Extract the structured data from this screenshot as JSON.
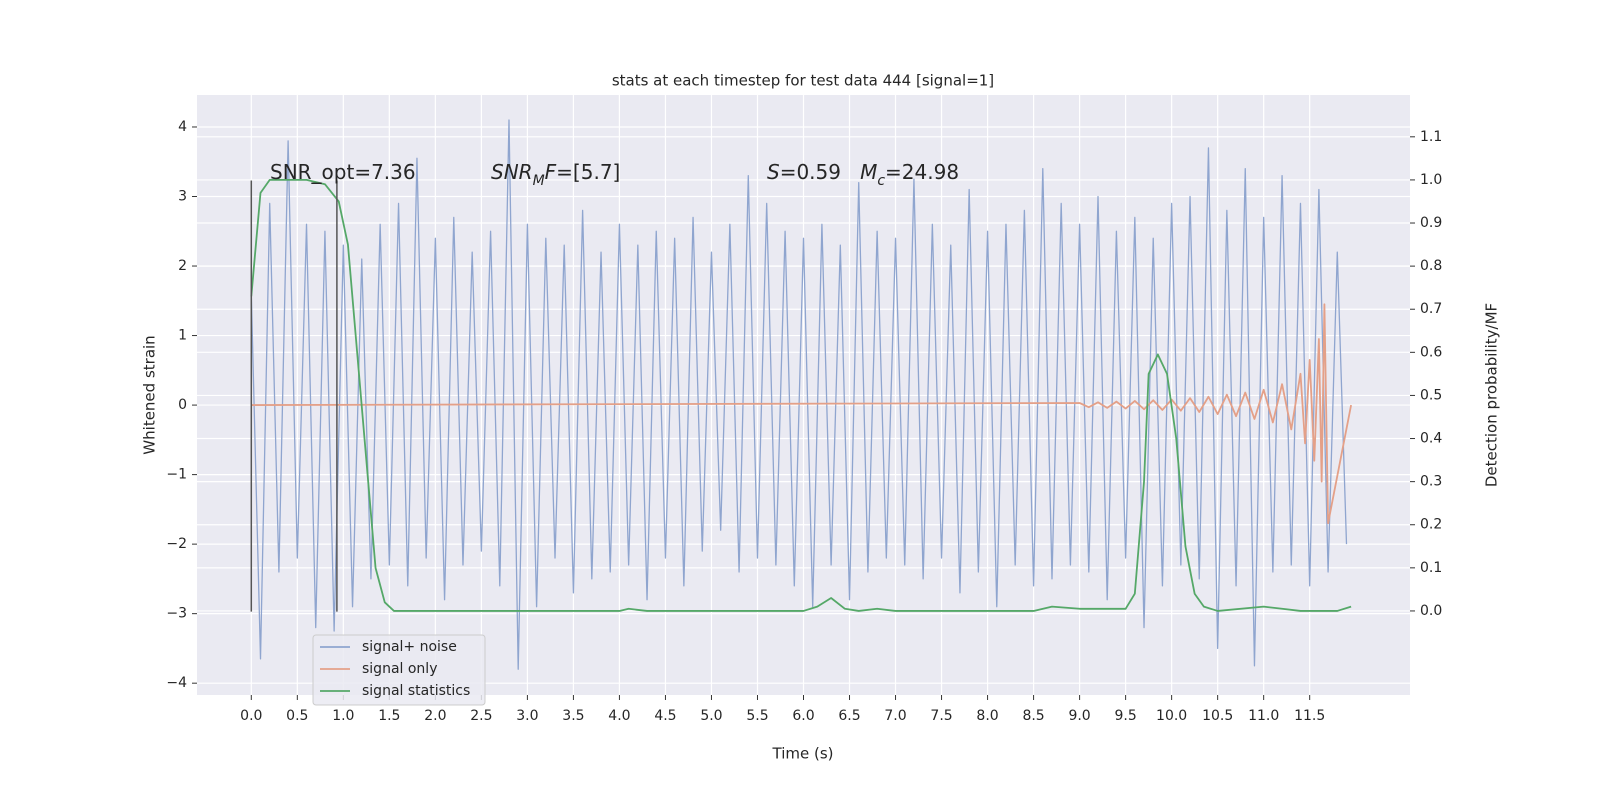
{
  "chart_data": {
    "type": "line",
    "title": "stats at each timestep for test data 444 [signal=1]",
    "xlabel": "Time (s)",
    "ylabel": "Whitened strain",
    "y2label": "Detection probability/MF",
    "xlim": [
      -0.59,
      12.59
    ],
    "ylim": [
      -4.17,
      4.46
    ],
    "y2lim": [
      -0.195,
      1.197
    ],
    "xticks": [
      {
        "value": 0,
        "label": "0.0"
      },
      0.5,
      {
        "value": 1,
        "label": "1.0"
      },
      1.5,
      {
        "value": 2,
        "label": "2.0"
      },
      2.5,
      {
        "value": 3,
        "label": "3.0"
      },
      3.5,
      {
        "value": 4,
        "label": "4.0"
      },
      4.5,
      {
        "value": 5,
        "label": "5.0"
      },
      5.5,
      {
        "value": 6,
        "label": "6.0"
      },
      6.5,
      {
        "value": 7,
        "label": "7.0"
      },
      7.5,
      {
        "value": 8,
        "label": "8.0"
      },
      8.5,
      {
        "value": 9,
        "label": "9.0"
      },
      9.5,
      {
        "value": 10,
        "label": "10.0"
      },
      10.5,
      {
        "value": 11,
        "label": "11.0"
      },
      11.5
    ],
    "yticks": [
      {
        "value": -4,
        "label": "−4"
      },
      {
        "value": -3,
        "label": "−3"
      },
      {
        "value": -2,
        "label": "−2"
      },
      {
        "value": -1,
        "label": "−1"
      },
      0,
      1,
      2,
      3,
      4
    ],
    "y2ticks": [
      {
        "value": 0,
        "label": "0.0"
      },
      0.1,
      0.2,
      0.3,
      0.4,
      0.5,
      0.6,
      0.7,
      0.8,
      0.9,
      {
        "value": 1,
        "label": "1.0"
      },
      1.1
    ],
    "grid": true,
    "legend": "lower left",
    "series": [
      {
        "name": "signal+ noise",
        "color": "#8fa5cf",
        "x": [
          0,
          0.1,
          0.2,
          0.3,
          0.4,
          0.5,
          0.6,
          0.7,
          0.8,
          0.9,
          1.0,
          1.1,
          1.2,
          1.3,
          1.4,
          1.5,
          1.6,
          1.7,
          1.8,
          1.9,
          2.0,
          2.1,
          2.2,
          2.3,
          2.4,
          2.5,
          2.6,
          2.7,
          2.8,
          2.9,
          3.0,
          3.1,
          3.2,
          3.3,
          3.4,
          3.5,
          3.6,
          3.7,
          3.8,
          3.9,
          4.0,
          4.1,
          4.2,
          4.3,
          4.4,
          4.5,
          4.6,
          4.7,
          4.8,
          4.9,
          5.0,
          5.1,
          5.2,
          5.3,
          5.4,
          5.5,
          5.6,
          5.7,
          5.8,
          5.9,
          6.0,
          6.1,
          6.2,
          6.3,
          6.4,
          6.5,
          6.6,
          6.7,
          6.8,
          6.9,
          7.0,
          7.1,
          7.2,
          7.3,
          7.4,
          7.5,
          7.6,
          7.7,
          7.8,
          7.9,
          8.0,
          8.1,
          8.2,
          8.3,
          8.4,
          8.5,
          8.6,
          8.7,
          8.8,
          8.9,
          9.0,
          9.1,
          9.2,
          9.3,
          9.4,
          9.5,
          9.6,
          9.7,
          9.8,
          9.9,
          10.0,
          10.1,
          10.2,
          10.3,
          10.4,
          10.5,
          10.6,
          10.7,
          10.8,
          10.9,
          11.0,
          11.1,
          11.2,
          11.3,
          11.4,
          11.5,
          11.6,
          11.7,
          11.8,
          11.9
        ],
        "values": [
          1.6,
          -3.65,
          2.9,
          -2.4,
          3.8,
          -2.2,
          2.6,
          -3.2,
          2.5,
          -3.25,
          2.3,
          -2.9,
          2.1,
          -2.5,
          2.6,
          -2.3,
          2.9,
          -2.6,
          3.55,
          -2.2,
          2.4,
          -2.8,
          2.7,
          -2.3,
          2.2,
          -2.1,
          2.5,
          -2.6,
          4.1,
          -3.8,
          2.6,
          -2.9,
          2.4,
          -2.2,
          2.3,
          -2.7,
          2.8,
          -2.5,
          2.2,
          -2.4,
          2.6,
          -2.3,
          2.3,
          -2.8,
          2.5,
          -2.2,
          2.4,
          -2.6,
          2.7,
          -2.1,
          2.2,
          -1.8,
          2.6,
          -2.4,
          3.3,
          -2.2,
          2.9,
          -2.3,
          2.5,
          -2.6,
          2.4,
          -2.9,
          2.6,
          -2.3,
          2.3,
          -2.8,
          3.2,
          -2.4,
          2.5,
          -2.2,
          2.4,
          -2.3,
          3.25,
          -2.5,
          2.6,
          -2.2,
          2.3,
          -2.7,
          3.1,
          -2.4,
          2.5,
          -2.9,
          2.6,
          -2.3,
          2.8,
          -2.6,
          3.4,
          -2.5,
          2.9,
          -2.3,
          2.6,
          -2.4,
          3.0,
          -2.8,
          2.5,
          -2.2,
          2.7,
          -3.2,
          2.4,
          -2.6,
          2.9,
          -2.3,
          3.0,
          -2.5,
          3.7,
          -3.5,
          2.8,
          -2.6,
          3.4,
          -3.75,
          2.7,
          -2.4,
          3.3,
          -2.3,
          2.9,
          -2.6,
          3.1,
          -2.4,
          2.2,
          -2.0
        ]
      },
      {
        "name": "signal only",
        "color": "#e4a088",
        "x": [
          0,
          9.0,
          9.1,
          9.2,
          9.3,
          9.4,
          9.5,
          9.6,
          9.7,
          9.8,
          9.9,
          10.0,
          10.1,
          10.2,
          10.3,
          10.4,
          10.5,
          10.6,
          10.7,
          10.8,
          10.9,
          11.0,
          11.1,
          11.2,
          11.3,
          11.4,
          11.45,
          11.5,
          11.55,
          11.6,
          11.63,
          11.66,
          11.7,
          11.95
        ],
        "values": [
          0,
          0.03,
          -0.03,
          0.04,
          -0.04,
          0.05,
          -0.05,
          0.06,
          -0.06,
          0.07,
          -0.07,
          0.08,
          -0.08,
          0.1,
          -0.1,
          0.12,
          -0.13,
          0.15,
          -0.16,
          0.18,
          -0.2,
          0.22,
          -0.25,
          0.3,
          -0.35,
          0.45,
          -0.55,
          0.65,
          -0.8,
          0.95,
          -1.1,
          1.45,
          -1.7,
          0
        ]
      },
      {
        "name": "signal statistics",
        "color": "#55a868",
        "axis": "y2",
        "x": [
          0,
          0.1,
          0.2,
          0.3,
          0.6,
          0.8,
          0.95,
          1.05,
          1.15,
          1.25,
          1.35,
          1.45,
          1.55,
          2.0,
          4.0,
          4.1,
          4.3,
          6.0,
          6.15,
          6.3,
          6.45,
          6.6,
          6.8,
          7.0,
          8.5,
          8.7,
          9.0,
          9.5,
          9.6,
          9.7,
          9.75,
          9.85,
          9.95,
          10.05,
          10.15,
          10.25,
          10.35,
          10.5,
          11.0,
          11.2,
          11.4,
          11.8,
          11.95
        ],
        "values": [
          0.73,
          0.97,
          1.0,
          1.0,
          1.0,
          0.99,
          0.95,
          0.85,
          0.6,
          0.35,
          0.1,
          0.02,
          0.0,
          0.0,
          0.0,
          0.005,
          0.0,
          0.0,
          0.01,
          0.03,
          0.005,
          0.0,
          0.005,
          0.0,
          0.0,
          0.01,
          0.005,
          0.005,
          0.04,
          0.3,
          0.55,
          0.595,
          0.55,
          0.4,
          0.15,
          0.04,
          0.01,
          0.0,
          0.01,
          0.005,
          0.0,
          0.0,
          0.01
        ]
      }
    ],
    "vlines": {
      "x": [
        0,
        0.93
      ],
      "ymin": -2.97,
      "ymax": 3.23,
      "color": "#555555"
    },
    "annotations": [
      [
        {
          "text": "SNR_opt=7.36"
        }
      ],
      [
        {
          "text": "SNR",
          "italic": true
        },
        {
          "text": "M",
          "italic": true,
          "sub": true
        },
        {
          "text": "F",
          "italic": true
        },
        {
          "text": "=[5.7]"
        }
      ],
      [
        {
          "text": "S",
          "italic": true
        },
        {
          "text": "=0.59   "
        },
        {
          "text": "M",
          "italic": true
        },
        {
          "text": "c",
          "italic": true,
          "sub": true
        },
        {
          "text": "=24.98"
        }
      ]
    ]
  }
}
